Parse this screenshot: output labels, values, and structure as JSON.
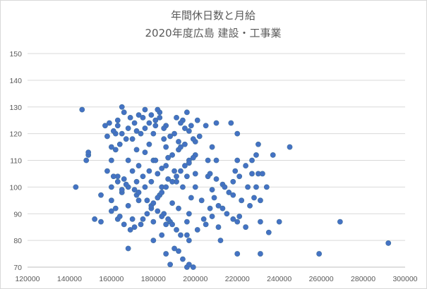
{
  "chart_data": {
    "type": "scatter",
    "title_lines": [
      "年間休日数と月給",
      "2020年度広島 建設・工事業"
    ],
    "xlabel": "",
    "ylabel": "",
    "xlim": [
      120000,
      300000
    ],
    "ylim": [
      70,
      150
    ],
    "x_ticks": [
      120000,
      140000,
      160000,
      180000,
      200000,
      220000,
      240000,
      260000,
      280000,
      300000
    ],
    "y_ticks": [
      70,
      80,
      90,
      100,
      110,
      120,
      130,
      140,
      150
    ],
    "grid": true,
    "legend": "none",
    "marker_color": "#4472c4",
    "series": [
      {
        "points": [
          [
            146000,
            129
          ],
          [
            165000,
            130
          ],
          [
            166000,
            128
          ],
          [
            176000,
            129
          ],
          [
            196000,
            128
          ],
          [
            191000,
            126
          ],
          [
            173000,
            127
          ],
          [
            163000,
            125
          ],
          [
            169000,
            126
          ],
          [
            183000,
            126
          ],
          [
            194000,
            125
          ],
          [
            210000,
            124
          ],
          [
            178000,
            124
          ],
          [
            159000,
            124
          ],
          [
            157000,
            123
          ],
          [
            163000,
            123
          ],
          [
            181000,
            123
          ],
          [
            186000,
            123
          ],
          [
            205000,
            123
          ],
          [
            217000,
            124
          ],
          [
            162000,
            120
          ],
          [
            172000,
            121
          ],
          [
            180000,
            120
          ],
          [
            190000,
            120
          ],
          [
            197000,
            121
          ],
          [
            220000,
            120
          ],
          [
            167000,
            118
          ],
          [
            185000,
            118
          ],
          [
            200000,
            117
          ],
          [
            178000,
            116
          ],
          [
            230000,
            116
          ],
          [
            208000,
            115
          ],
          [
            245000,
            115
          ],
          [
            172000,
            114
          ],
          [
            186000,
            115
          ],
          [
            192000,
            114
          ],
          [
            149000,
            112
          ],
          [
            149000,
            113
          ],
          [
            176000,
            113
          ],
          [
            200000,
            112
          ],
          [
            237000,
            112
          ],
          [
            148000,
            110
          ],
          [
            160000,
            110
          ],
          [
            168000,
            110
          ],
          [
            180000,
            110
          ],
          [
            197000,
            110
          ],
          [
            210000,
            110
          ],
          [
            220000,
            110
          ],
          [
            173000,
            108
          ],
          [
            186000,
            108
          ],
          [
            170000,
            106
          ],
          [
            182000,
            105
          ],
          [
            190000,
            106
          ],
          [
            200000,
            105
          ],
          [
            219000,
            106
          ],
          [
            227000,
            105
          ],
          [
            230000,
            105
          ],
          [
            163000,
            104
          ],
          [
            175000,
            104
          ],
          [
            187000,
            103
          ],
          [
            196000,
            104
          ],
          [
            206000,
            104
          ],
          [
            179000,
            102
          ],
          [
            191000,
            102
          ],
          [
            143000,
            100
          ],
          [
            160000,
            100
          ],
          [
            168000,
            100
          ],
          [
            176000,
            100
          ],
          [
            184000,
            100
          ],
          [
            194000,
            100
          ],
          [
            200000,
            100
          ],
          [
            213000,
            101
          ],
          [
            225000,
            100
          ],
          [
            229000,
            100
          ],
          [
            155000,
            97
          ],
          [
            165000,
            98
          ],
          [
            172000,
            97
          ],
          [
            183000,
            97
          ],
          [
            198000,
            96
          ],
          [
            218000,
            97
          ],
          [
            231000,
            95
          ],
          [
            173000,
            95
          ],
          [
            189000,
            94
          ],
          [
            203000,
            95
          ],
          [
            222000,
            95
          ],
          [
            168000,
            93
          ],
          [
            179000,
            92
          ],
          [
            192000,
            92
          ],
          [
            213000,
            92
          ],
          [
            160000,
            91
          ],
          [
            185000,
            90
          ],
          [
            197000,
            90
          ],
          [
            208000,
            89
          ],
          [
            221000,
            89
          ],
          [
            152000,
            88
          ],
          [
            163000,
            88
          ],
          [
            170000,
            88
          ],
          [
            180000,
            87
          ],
          [
            188000,
            87
          ],
          [
            196000,
            87
          ],
          [
            205000,
            86
          ],
          [
            220000,
            87
          ],
          [
            231000,
            87
          ],
          [
            240000,
            87
          ],
          [
            269000,
            87
          ],
          [
            155000,
            87
          ],
          [
            174000,
            86
          ],
          [
            186000,
            86
          ],
          [
            211000,
            85
          ],
          [
            224000,
            85
          ],
          [
            235000,
            83
          ],
          [
            184000,
            82
          ],
          [
            196000,
            82
          ],
          [
            212000,
            80
          ],
          [
            168000,
            77
          ],
          [
            180000,
            80
          ],
          [
            190000,
            77
          ],
          [
            186000,
            75
          ],
          [
            192000,
            76
          ],
          [
            220000,
            75
          ],
          [
            231000,
            75
          ],
          [
            259000,
            75
          ],
          [
            188000,
            71
          ],
          [
            196000,
            70
          ],
          [
            197000,
            71
          ],
          [
            292000,
            79
          ],
          [
            199000,
            70
          ],
          [
            194000,
            73
          ],
          [
            165000,
            99
          ],
          [
            166000,
            103
          ],
          [
            172000,
            102
          ],
          [
            178000,
            106
          ],
          [
            181000,
            110
          ],
          [
            184000,
            107
          ],
          [
            187000,
            111
          ],
          [
            189000,
            112
          ],
          [
            193000,
            115
          ],
          [
            199000,
            118
          ],
          [
            202000,
            119
          ],
          [
            206000,
            110
          ],
          [
            207000,
            105
          ],
          [
            208000,
            99
          ],
          [
            209000,
            96
          ],
          [
            211000,
            93
          ],
          [
            215000,
            90
          ],
          [
            218000,
            88
          ],
          [
            160000,
            115
          ],
          [
            162000,
            114
          ],
          [
            164000,
            116
          ],
          [
            170000,
            118
          ],
          [
            174000,
            120
          ],
          [
            176000,
            122
          ],
          [
            181000,
            125
          ],
          [
            183000,
            128
          ],
          [
            185000,
            122
          ],
          [
            188000,
            119
          ],
          [
            192000,
            117
          ],
          [
            195000,
            116
          ],
          [
            158000,
            106
          ],
          [
            161000,
            104
          ],
          [
            163000,
            102
          ],
          [
            167000,
            101
          ],
          [
            171000,
            99
          ],
          [
            173000,
            98
          ],
          [
            177000,
            95
          ],
          [
            179000,
            93
          ],
          [
            182000,
            91
          ],
          [
            184000,
            89
          ],
          [
            187000,
            88
          ],
          [
            189000,
            86
          ],
          [
            191000,
            84
          ],
          [
            193000,
            82
          ],
          [
            197000,
            80
          ],
          [
            201000,
            84
          ],
          [
            204000,
            88
          ],
          [
            207000,
            92
          ],
          [
            160000,
            95
          ],
          [
            162000,
            92
          ],
          [
            164000,
            89
          ],
          [
            166000,
            86
          ],
          [
            169000,
            84
          ],
          [
            171000,
            85
          ],
          [
            175000,
            88
          ],
          [
            177000,
            90
          ],
          [
            180000,
            94
          ],
          [
            182000,
            96
          ],
          [
            184000,
            98
          ],
          [
            186000,
            100
          ],
          [
            189000,
            102
          ],
          [
            191000,
            104
          ],
          [
            193000,
            106
          ],
          [
            195000,
            108
          ],
          [
            197000,
            109
          ],
          [
            199000,
            111
          ],
          [
            210000,
            103
          ],
          [
            214000,
            100
          ],
          [
            216000,
            98
          ],
          [
            218000,
            102
          ],
          [
            221000,
            104
          ],
          [
            224000,
            108
          ],
          [
            227000,
            110
          ],
          [
            229000,
            112
          ],
          [
            232000,
            105
          ],
          [
            234000,
            100
          ],
          [
            228000,
            96
          ],
          [
            226000,
            93
          ],
          [
            158000,
            119
          ],
          [
            161000,
            121
          ],
          [
            165000,
            120
          ],
          [
            168000,
            122
          ],
          [
            171000,
            124
          ],
          [
            175000,
            126
          ],
          [
            179000,
            127
          ],
          [
            182000,
            129
          ],
          [
            193000,
            124
          ],
          [
            195000,
            122
          ],
          [
            198000,
            123
          ],
          [
            201000,
            125
          ]
        ]
      }
    ]
  }
}
